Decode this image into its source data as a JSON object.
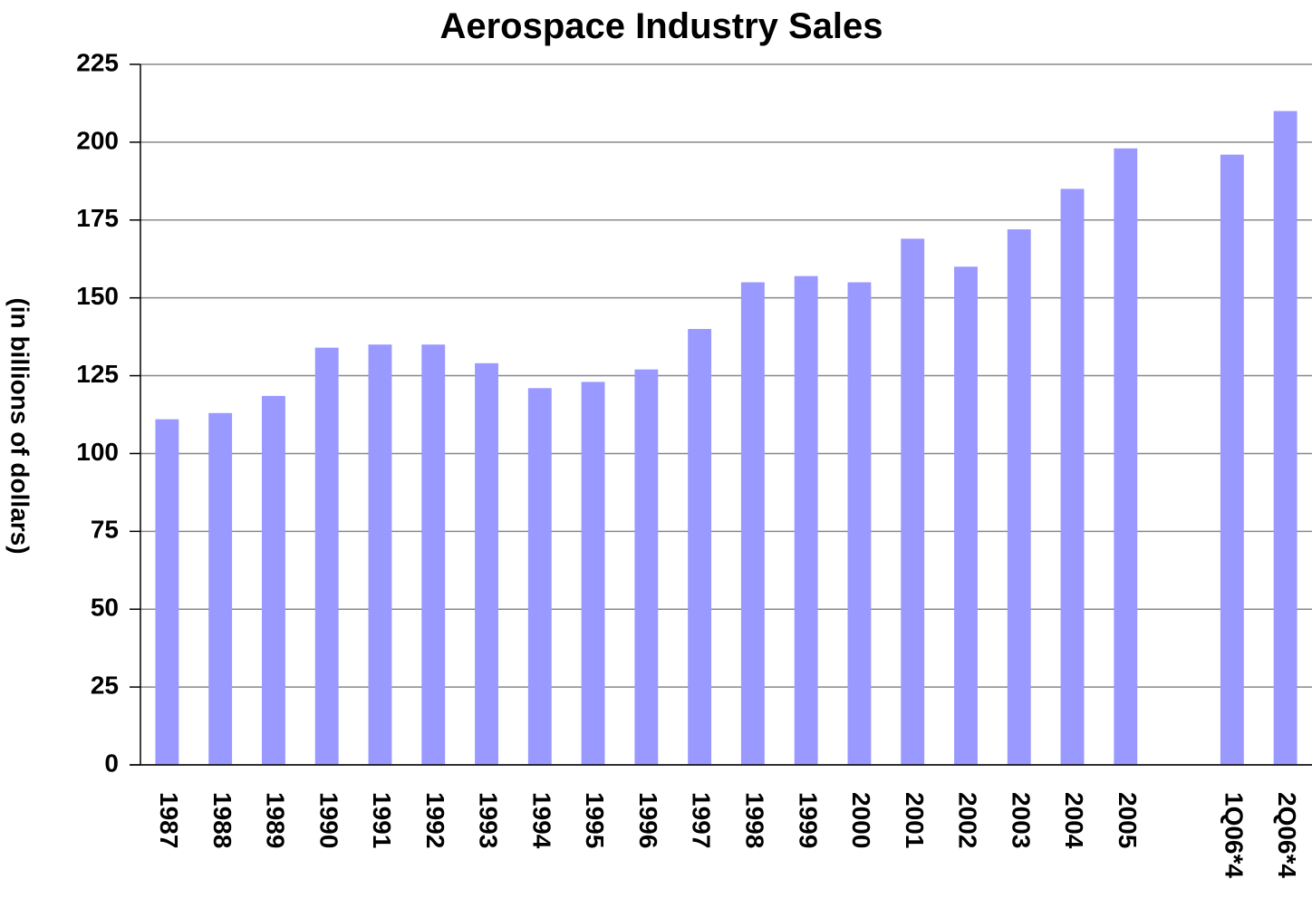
{
  "chart_data": {
    "type": "bar",
    "title": "Aerospace Industry Sales",
    "y_label": "(in billions of dollars)",
    "categories": [
      "1987",
      "1988",
      "1989",
      "1990",
      "1991",
      "1992",
      "1993",
      "1994",
      "1995",
      "1996",
      "1997",
      "1998",
      "1999",
      "2000",
      "2001",
      "2002",
      "2003",
      "2004",
      "2005",
      null,
      "1Q06*4",
      "2Q06*4"
    ],
    "values": [
      111,
      113,
      118.5,
      134,
      135,
      135,
      129,
      121,
      123,
      127,
      140,
      155,
      157,
      155,
      169,
      160,
      172,
      185,
      198,
      null,
      196,
      210
    ],
    "color": "#9999ff",
    "ylim": [
      0,
      225
    ],
    "yticks": [
      0,
      25,
      50,
      75,
      100,
      125,
      150,
      175,
      200,
      225
    ],
    "grid": true
  }
}
